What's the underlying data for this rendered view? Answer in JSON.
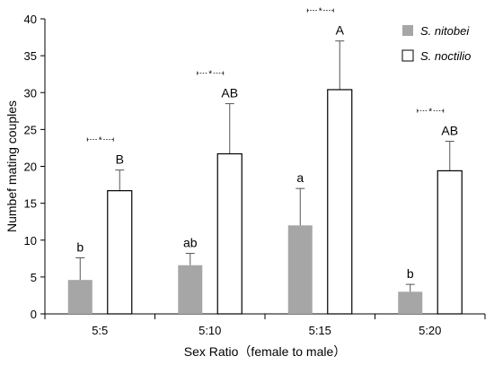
{
  "chart_data": {
    "type": "bar",
    "title": "",
    "xlabel": "Sex Ratio（female to male）",
    "ylabel": "Numbef mating couples",
    "ylim": [
      0,
      40
    ],
    "yticks": [
      0,
      5,
      10,
      15,
      20,
      25,
      30,
      35,
      40
    ],
    "grid": false,
    "legend_position": "top-right",
    "categories": [
      "5:5",
      "5:10",
      "5:15",
      "5:20"
    ],
    "series": [
      {
        "name": "S. nitobei",
        "color": "#a6a6a6",
        "fill": "solid-gray",
        "values": [
          4.6,
          6.6,
          12.0,
          3.0
        ],
        "errors": [
          3.0,
          1.6,
          5.0,
          1.0
        ],
        "labels": [
          "b",
          "ab",
          "a",
          "b"
        ]
      },
      {
        "name": "S. noctilio",
        "color": "#ffffff",
        "fill": "white-outlined",
        "values": [
          16.7,
          21.7,
          30.4,
          19.4
        ],
        "errors": [
          2.8,
          6.8,
          6.6,
          4.0
        ],
        "labels": [
          "B",
          "AB",
          "A",
          "AB"
        ]
      }
    ],
    "significance_marks": [
      "*",
      "*",
      "*",
      "*"
    ]
  }
}
